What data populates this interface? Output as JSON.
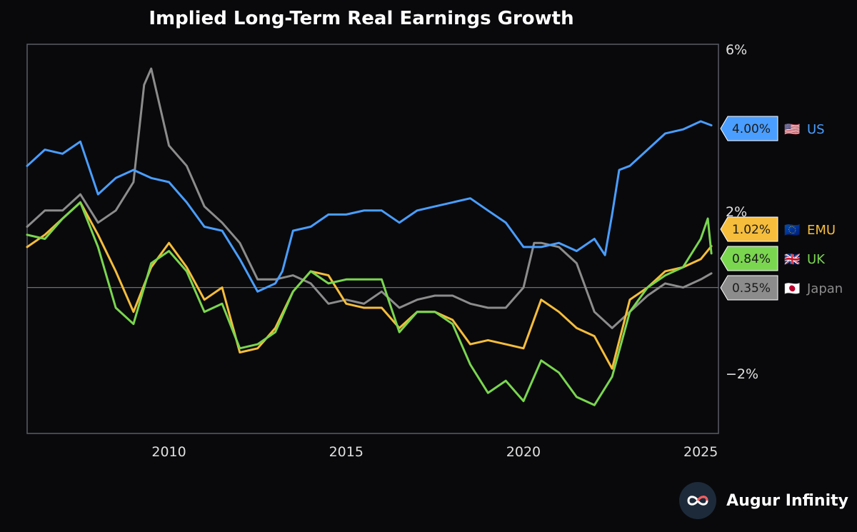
{
  "chart_data": {
    "type": "line",
    "title": "Implied Long-Term Real Earnings Growth",
    "xlabel": "",
    "ylabel": "",
    "xlim": [
      2006.0,
      2025.5
    ],
    "ylim": [
      -3.6,
      6.0
    ],
    "y_ticks": [
      {
        "value": 6,
        "label": "6%"
      },
      {
        "value": 2,
        "label": "2%"
      },
      {
        "value": -2,
        "label": "−2%"
      }
    ],
    "x_ticks": [
      {
        "value": 2010,
        "label": "2010"
      },
      {
        "value": 2015,
        "label": "2015"
      },
      {
        "value": 2020,
        "label": "2020"
      },
      {
        "value": 2025,
        "label": "2025"
      }
    ],
    "zero_line": 0,
    "series": [
      {
        "name": "Japan",
        "flag": "🇯🇵",
        "color": "#8c8c8c",
        "last_label": "0.35%",
        "x": [
          2006.0,
          2006.5,
          2007.0,
          2007.5,
          2008.0,
          2008.5,
          2009.0,
          2009.3,
          2009.5,
          2010.0,
          2010.5,
          2011.0,
          2011.5,
          2012.0,
          2012.5,
          2013.0,
          2013.5,
          2014.0,
          2014.5,
          2015.0,
          2015.5,
          2016.0,
          2016.5,
          2017.0,
          2017.5,
          2018.0,
          2018.5,
          2019.0,
          2019.5,
          2020.0,
          2020.3,
          2020.5,
          2021.0,
          2021.5,
          2022.0,
          2022.5,
          2023.0,
          2023.5,
          2024.0,
          2024.5,
          2025.0,
          2025.3
        ],
        "y": [
          1.5,
          1.9,
          1.9,
          2.3,
          1.6,
          1.9,
          2.6,
          5.0,
          5.4,
          3.5,
          3.0,
          2.0,
          1.6,
          1.1,
          0.2,
          0.2,
          0.3,
          0.1,
          -0.4,
          -0.3,
          -0.4,
          -0.1,
          -0.5,
          -0.3,
          -0.2,
          -0.2,
          -0.4,
          -0.5,
          -0.5,
          0.0,
          1.1,
          1.1,
          1.0,
          0.6,
          -0.6,
          -1.0,
          -0.6,
          -0.2,
          0.1,
          0.0,
          0.2,
          0.35
        ]
      },
      {
        "name": "US",
        "flag": "🇺🇸",
        "color": "#4a9eff",
        "last_label": "4.00%",
        "x": [
          2006.0,
          2006.5,
          2007.0,
          2007.5,
          2008.0,
          2008.5,
          2009.0,
          2009.5,
          2010.0,
          2010.5,
          2011.0,
          2011.5,
          2012.0,
          2012.5,
          2013.0,
          2013.2,
          2013.5,
          2014.0,
          2014.5,
          2015.0,
          2015.5,
          2016.0,
          2016.5,
          2017.0,
          2017.5,
          2018.0,
          2018.5,
          2019.0,
          2019.5,
          2020.0,
          2020.5,
          2021.0,
          2021.5,
          2022.0,
          2022.3,
          2022.5,
          2022.7,
          2023.0,
          2023.5,
          2024.0,
          2024.5,
          2025.0,
          2025.3
        ],
        "y": [
          3.0,
          3.4,
          3.3,
          3.6,
          2.3,
          2.7,
          2.9,
          2.7,
          2.6,
          2.1,
          1.5,
          1.4,
          0.7,
          -0.1,
          0.1,
          0.4,
          1.4,
          1.5,
          1.8,
          1.8,
          1.9,
          1.9,
          1.6,
          1.9,
          2.0,
          2.1,
          2.2,
          1.9,
          1.6,
          1.0,
          1.0,
          1.1,
          0.9,
          1.2,
          0.8,
          1.8,
          2.9,
          3.0,
          3.4,
          3.8,
          3.9,
          4.1,
          4.0
        ]
      },
      {
        "name": "EMU",
        "flag": "🇪🇺",
        "color": "#f5bd3b",
        "last_label": "1.02%",
        "x": [
          2006.0,
          2006.5,
          2007.0,
          2007.5,
          2008.0,
          2008.5,
          2009.0,
          2009.5,
          2010.0,
          2010.5,
          2011.0,
          2011.5,
          2012.0,
          2012.5,
          2013.0,
          2013.5,
          2014.0,
          2014.5,
          2015.0,
          2015.5,
          2016.0,
          2016.5,
          2017.0,
          2017.5,
          2018.0,
          2018.5,
          2019.0,
          2019.5,
          2020.0,
          2020.5,
          2021.0,
          2021.5,
          2022.0,
          2022.5,
          2023.0,
          2023.5,
          2024.0,
          2024.5,
          2025.0,
          2025.3
        ],
        "y": [
          1.0,
          1.3,
          1.7,
          2.1,
          1.3,
          0.4,
          -0.6,
          0.5,
          1.1,
          0.5,
          -0.3,
          0.0,
          -1.6,
          -1.5,
          -1.0,
          -0.1,
          0.4,
          0.3,
          -0.4,
          -0.5,
          -0.5,
          -1.0,
          -0.6,
          -0.6,
          -0.8,
          -1.4,
          -1.3,
          -1.4,
          -1.5,
          -0.3,
          -0.6,
          -1.0,
          -1.2,
          -2.0,
          -0.3,
          0.0,
          0.4,
          0.5,
          0.7,
          1.02
        ]
      },
      {
        "name": "UK",
        "flag": "🇬🇧",
        "color": "#7ad64f",
        "last_label": "0.84%",
        "x": [
          2006.0,
          2006.5,
          2007.0,
          2007.5,
          2008.0,
          2008.5,
          2009.0,
          2009.5,
          2010.0,
          2010.5,
          2011.0,
          2011.5,
          2012.0,
          2012.5,
          2013.0,
          2013.5,
          2014.0,
          2014.5,
          2015.0,
          2015.5,
          2016.0,
          2016.5,
          2017.0,
          2017.5,
          2018.0,
          2018.5,
          2019.0,
          2019.5,
          2020.0,
          2020.5,
          2021.0,
          2021.5,
          2022.0,
          2022.5,
          2023.0,
          2023.5,
          2024.0,
          2024.5,
          2025.0,
          2025.2,
          2025.3
        ],
        "y": [
          1.3,
          1.2,
          1.7,
          2.1,
          1.0,
          -0.5,
          -0.9,
          0.6,
          0.9,
          0.4,
          -0.6,
          -0.4,
          -1.5,
          -1.4,
          -1.1,
          -0.1,
          0.4,
          0.1,
          0.2,
          0.2,
          0.2,
          -1.1,
          -0.6,
          -0.6,
          -0.9,
          -1.9,
          -2.6,
          -2.3,
          -2.8,
          -1.8,
          -2.1,
          -2.7,
          -2.9,
          -2.2,
          -0.6,
          0.0,
          0.3,
          0.5,
          1.2,
          1.7,
          0.84
        ]
      }
    ]
  },
  "brand": {
    "name": "Augur Infinity"
  }
}
